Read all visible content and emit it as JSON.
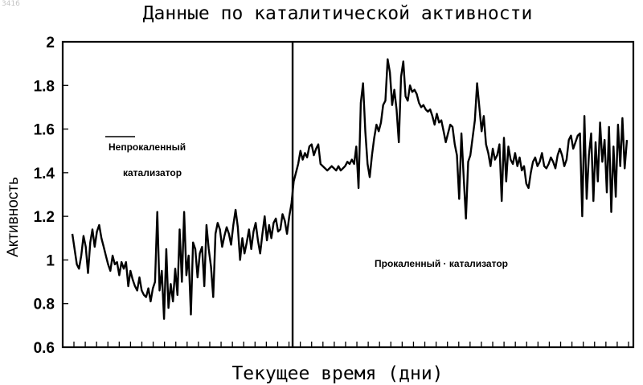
{
  "corner_tag": "3416",
  "chart_data": {
    "type": "line",
    "title": "Данные по каталитической активности",
    "xlabel": "Текущее время (дни)",
    "ylabel": "Активность",
    "ylim": [
      0.6,
      2.0
    ],
    "yticks": [
      "0.6",
      "0.8",
      "1",
      "1.2",
      "1.4",
      "1.6",
      "1.8",
      "2"
    ],
    "x_tick_count": 50,
    "grid": false,
    "legend": "none",
    "annotations": [
      {
        "text": "Непрокаленный",
        "region": "uncalcined"
      },
      {
        "text": "катализатор",
        "region": "uncalcined"
      },
      {
        "text": "Прокаленный · катализатор",
        "region": "calcined"
      }
    ],
    "divider_index": 98,
    "series": [
      {
        "values": [
          1.12,
          1.05,
          0.98,
          0.96,
          1.02,
          1.11,
          1.06,
          0.94,
          1.08,
          1.14,
          1.06,
          1.13,
          1.16,
          1.1,
          1.06,
          1.02,
          0.98,
          0.95,
          1.02,
          0.98,
          0.99,
          0.93,
          0.99,
          0.96,
          0.99,
          0.88,
          0.95,
          0.91,
          0.88,
          0.86,
          0.92,
          0.86,
          0.84,
          0.83,
          0.87,
          0.81,
          0.87,
          0.9,
          1.22,
          0.86,
          0.95,
          0.73,
          1.05,
          0.78,
          0.89,
          0.81,
          0.96,
          0.84,
          1.14,
          0.9,
          1.22,
          0.93,
          1.02,
          0.75,
          1.08,
          1.05,
          0.92,
          1.03,
          1.06,
          0.88,
          1.16,
          1.05,
          0.97,
          0.83,
          1.12,
          1.17,
          1.14,
          1.06,
          1.11,
          1.15,
          1.12,
          1.07,
          1.16,
          1.23,
          1.15,
          1.0,
          1.1,
          1.03,
          1.08,
          1.14,
          1.05,
          1.13,
          1.17,
          1.09,
          1.03,
          1.12,
          1.2,
          1.09,
          1.16,
          1.1,
          1.17,
          1.19,
          1.13,
          1.14,
          1.21,
          1.18,
          1.12,
          1.2,
          1.26,
          1.36,
          1.4,
          1.44,
          1.5,
          1.46,
          1.49,
          1.47,
          1.52,
          1.53,
          1.48,
          1.51,
          1.53,
          1.44,
          1.43,
          1.42,
          1.41,
          1.42,
          1.43,
          1.42,
          1.41,
          1.43,
          1.41,
          1.42,
          1.43,
          1.45,
          1.44,
          1.46,
          1.44,
          1.52,
          1.33,
          1.72,
          1.81,
          1.59,
          1.44,
          1.38,
          1.48,
          1.56,
          1.62,
          1.59,
          1.63,
          1.71,
          1.73,
          1.92,
          1.86,
          1.71,
          1.78,
          1.69,
          1.54,
          1.84,
          1.91,
          1.75,
          1.73,
          1.8,
          1.77,
          1.78,
          1.76,
          1.72,
          1.7,
          1.71,
          1.69,
          1.68,
          1.69,
          1.66,
          1.62,
          1.67,
          1.63,
          1.64,
          1.59,
          1.54,
          1.58,
          1.62,
          1.61,
          1.53,
          1.48,
          1.28,
          1.58,
          1.38,
          1.19,
          1.45,
          1.48,
          1.56,
          1.64,
          1.81,
          1.7,
          1.59,
          1.66,
          1.53,
          1.49,
          1.43,
          1.51,
          1.46,
          1.48,
          1.53,
          1.27,
          1.56,
          1.36,
          1.52,
          1.46,
          1.44,
          1.49,
          1.43,
          1.47,
          1.41,
          1.43,
          1.35,
          1.33,
          1.4,
          1.45,
          1.47,
          1.43,
          1.45,
          1.49,
          1.43,
          1.42,
          1.44,
          1.47,
          1.45,
          1.42,
          1.48,
          1.51,
          1.48,
          1.43,
          1.46,
          1.55,
          1.57,
          1.51,
          1.54,
          1.57,
          1.58,
          1.2,
          1.66,
          1.28,
          1.48,
          1.58,
          1.27,
          1.54,
          1.36,
          1.63,
          1.45,
          1.55,
          1.31,
          1.61,
          1.22,
          1.52,
          1.29,
          1.62,
          1.43,
          1.65,
          1.42,
          1.55
        ]
      }
    ]
  }
}
